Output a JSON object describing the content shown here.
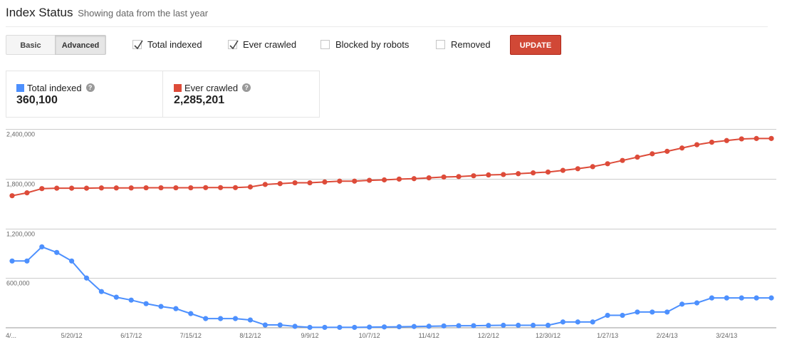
{
  "header": {
    "title": "Index Status",
    "subtitle": "Showing data from the last year"
  },
  "controls": {
    "tabs": [
      {
        "label": "Basic",
        "active": false
      },
      {
        "label": "Advanced",
        "active": true
      }
    ],
    "checkboxes": [
      {
        "label": "Total indexed",
        "checked": true
      },
      {
        "label": "Ever crawled",
        "checked": true
      },
      {
        "label": "Blocked by robots",
        "checked": false
      },
      {
        "label": "Removed",
        "checked": false
      }
    ],
    "update_button": "UPDATE"
  },
  "summary": {
    "values": [
      "360,100",
      "2,285,201"
    ]
  },
  "chart_data": {
    "type": "line",
    "categories": [
      "4/...",
      null,
      null,
      null,
      "5/20/12",
      null,
      null,
      null,
      "6/17/12",
      null,
      null,
      null,
      "7/15/12",
      null,
      null,
      null,
      "8/12/12",
      null,
      null,
      null,
      "9/9/12",
      null,
      null,
      null,
      "10/7/12",
      null,
      null,
      null,
      "11/4/12",
      null,
      null,
      null,
      "12/2/12",
      null,
      null,
      null,
      "12/30/12",
      null,
      null,
      null,
      "1/27/13",
      null,
      null,
      null,
      "2/24/13",
      null,
      null,
      null,
      "3/24/13",
      null,
      null,
      null
    ],
    "series": [
      {
        "name": "Total indexed",
        "color": "#4d90fe",
        "values": [
          806000,
          806000,
          977000,
          909000,
          806000,
          600000,
          437000,
          369000,
          334000,
          291000,
          257000,
          231000,
          171000,
          111000,
          111000,
          111000,
          94000,
          34000,
          34000,
          17000,
          5000,
          5000,
          5000,
          5000,
          8000,
          10000,
          12000,
          15000,
          18000,
          22000,
          25000,
          25000,
          28000,
          30000,
          30000,
          30000,
          30000,
          70000,
          70000,
          70000,
          150000,
          150000,
          190000,
          190000,
          190000,
          285000,
          300000,
          360000,
          360000,
          360000,
          360000,
          360100
        ]
      },
      {
        "name": "Ever crawled",
        "color": "#dd4b39",
        "values": [
          1594000,
          1629000,
          1680000,
          1685000,
          1685000,
          1685000,
          1688000,
          1688000,
          1688000,
          1690000,
          1690000,
          1690000,
          1690000,
          1692000,
          1692000,
          1692000,
          1700000,
          1730000,
          1740000,
          1750000,
          1750000,
          1760000,
          1770000,
          1770000,
          1780000,
          1785000,
          1795000,
          1800000,
          1810000,
          1820000,
          1825000,
          1835000,
          1845000,
          1850000,
          1860000,
          1870000,
          1880000,
          1900000,
          1920000,
          1945000,
          1980000,
          2020000,
          2060000,
          2100000,
          2130000,
          2170000,
          2210000,
          2240000,
          2260000,
          2280000,
          2285000,
          2285201
        ]
      }
    ],
    "ylim": [
      0,
      2400000
    ],
    "yticks": [
      {
        "value": 600000,
        "label": "600,000"
      },
      {
        "value": 1200000,
        "label": "1,200,000"
      },
      {
        "value": 1800000,
        "label": "1,800,000"
      },
      {
        "value": 2400000,
        "label": "2,400,000"
      }
    ],
    "grid": true
  }
}
